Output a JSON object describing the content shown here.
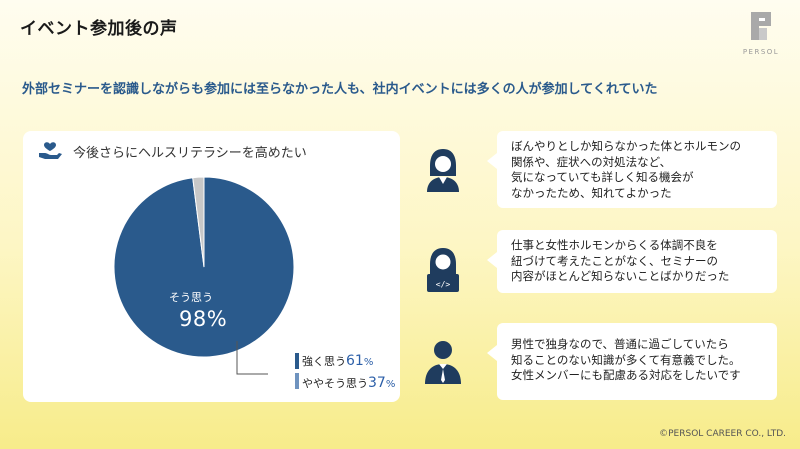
{
  "slide": {
    "title": "イベント参加後の声",
    "subtitle": "外部セミナーを認識しながらも参加には至らなかった人も、社内イベントには多くの人が参加してくれていた",
    "copyright": "©PERSOL CAREER CO., LTD."
  },
  "logo": {
    "text": "PERSOL"
  },
  "panel": {
    "icon": "heart-hand-icon",
    "title": "今後さらにヘルスリテラシーを高めたい",
    "pie_label": "そう思う",
    "pie_pct": "98%",
    "breakdown": [
      {
        "label": "強く思う",
        "num": "61",
        "unit": "%"
      },
      {
        "label": "ややそう思う",
        "num": "37",
        "unit": "%"
      }
    ]
  },
  "chart_data": {
    "type": "pie",
    "title": "今後さらにヘルスリテラシーを高めたい",
    "slices": [
      {
        "label": "そう思う",
        "value": 98,
        "color": "#2a5a8c"
      },
      {
        "label": "",
        "value": 2,
        "color": "#c8c8c8"
      }
    ]
  },
  "testimonials": [
    {
      "icon": "woman-avatar-icon",
      "lines": [
        "ぼんやりとしか知らなかった体とホルモンの",
        "関係や、症状への対処法など、",
        "気になっていても詳しく知る機会が",
        "なかったため、知れてよかった"
      ]
    },
    {
      "icon": "developer-avatar-icon",
      "lines": [
        "仕事と女性ホルモンからくる体調不良を",
        "紐づけて考えたことがなく、セミナーの",
        "内容がほとんど知らないことばかりだった"
      ]
    },
    {
      "icon": "businessman-avatar-icon",
      "lines": [
        "男性で独身なので、普通に過ごしていたら",
        "知ることのない知識が多くて有意義でした。",
        "女性メンバーにも配慮ある対応をしたいです"
      ]
    }
  ],
  "colors": {
    "accent": "#2a5a8c",
    "pie_main": "#2a5a8c",
    "pie_rest": "#c8c8c8"
  }
}
